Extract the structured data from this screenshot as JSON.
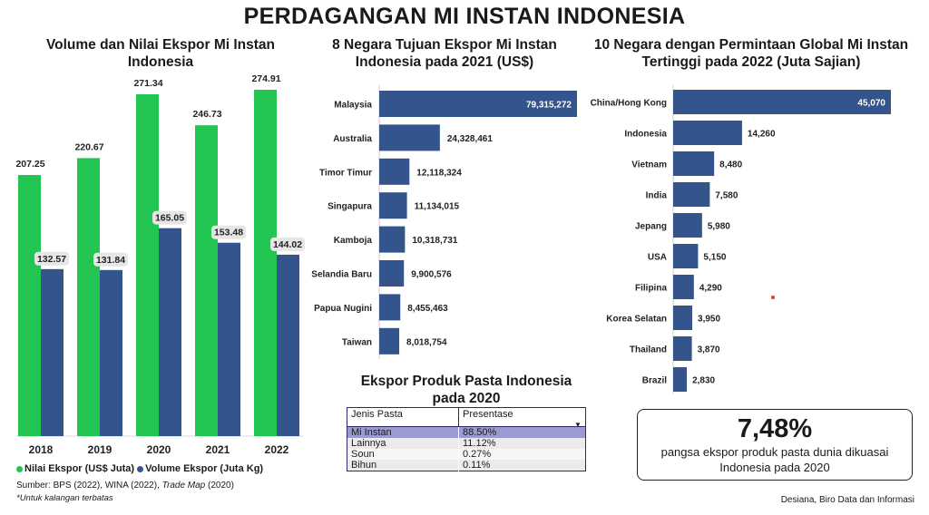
{
  "main_title": "PERDAGANGAN MI INSTAN INDONESIA",
  "colors": {
    "green": "#22c452",
    "navy": "#34558b",
    "label_bg": "#e6e6e6"
  },
  "chart_data": [
    {
      "type": "bar",
      "title": "Volume dan Nilai Ekspor Mi Instan Indonesia",
      "categories": [
        "2018",
        "2019",
        "2020",
        "2021",
        "2022"
      ],
      "series": [
        {
          "name": "Nilai Ekspor (US$ Juta)",
          "values": [
            207.25,
            220.67,
            271.34,
            246.73,
            274.91
          ],
          "labels": [
            "207.25",
            "220.67",
            "271.34",
            "246.73",
            "274.91"
          ]
        },
        {
          "name": "Volume Ekspor (Juta Kg)",
          "values": [
            132.57,
            131.84,
            165.05,
            153.48,
            144.02
          ],
          "labels": [
            "132.57",
            "131.84",
            "165.05",
            "153.48",
            "144.02"
          ]
        }
      ],
      "legend_position": "bottom-left",
      "grid": false
    },
    {
      "type": "bar",
      "orientation": "horizontal",
      "title": "8 Negara Tujuan Ekspor Mi Instan Indonesia pada 2021 (US$)",
      "categories": [
        "Malaysia",
        "Australia",
        "Timor Timur",
        "Singapura",
        "Kamboja",
        "Selandia Baru",
        "Papua Nugini",
        "Taiwan"
      ],
      "values": [
        79315272,
        24328461,
        12118324,
        11134015,
        10318731,
        9900576,
        8455463,
        8018754
      ],
      "labels": [
        "79,315,272",
        "24,328,461",
        "12,118,324",
        "11,134,015",
        "10,318,731",
        "9,900,576",
        "8,455,463",
        "8,018,754"
      ],
      "grid": false
    },
    {
      "type": "bar",
      "orientation": "horizontal",
      "title": "10 Negara dengan Permintaan Global Mi Instan Tertinggi pada 2022 (Juta Sajian)",
      "categories": [
        "China/Hong Kong",
        "Indonesia",
        "Vietnam",
        "India",
        "Jepang",
        "USA",
        "Filipina",
        "Korea Selatan",
        "Thailand",
        "Brazil"
      ],
      "values": [
        45070,
        14260,
        8480,
        7580,
        5980,
        5150,
        4290,
        3950,
        3870,
        2830
      ],
      "labels": [
        "45,070",
        "14,260",
        "8,480",
        "7,580",
        "5,980",
        "5,150",
        "4,290",
        "3,950",
        "3,870",
        "2,830"
      ],
      "grid": false
    },
    {
      "type": "table",
      "title": "Ekspor Produk Pasta Indonesia pada 2020",
      "columns": [
        "Jenis Pasta",
        "Presentase"
      ],
      "rows": [
        [
          "Mi Instan",
          "88.50%"
        ],
        [
          "Lainnya",
          "11.12%"
        ],
        [
          "Soun",
          "0.27%"
        ],
        [
          "Bihun",
          "0.11%"
        ]
      ]
    }
  ],
  "stat": {
    "value": "7,48%",
    "text": "pangsa ekspor produk pasta dunia dikuasai Indonesia pada 2020"
  },
  "source": {
    "prefix": "Sumber: BPS (2022), WINA (2022), ",
    "italic": "Trade Map",
    "suffix": " (2020)"
  },
  "note": "*Untuk kalangan terbatas",
  "credit": "Desiana, Biro Data dan Informasi"
}
